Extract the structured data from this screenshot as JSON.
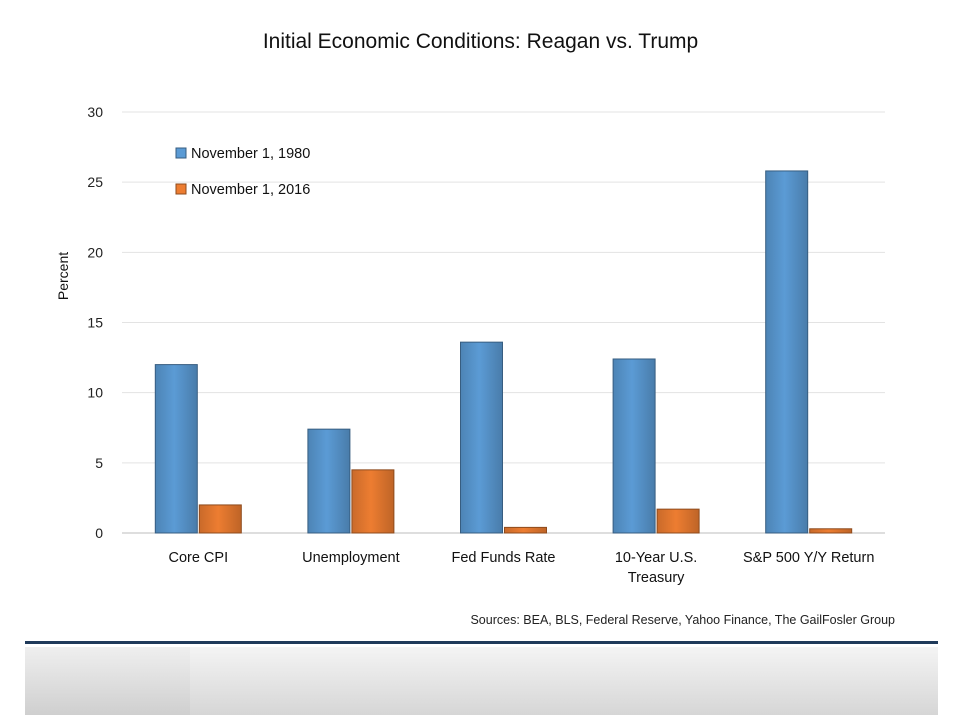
{
  "chart_data": {
    "type": "bar",
    "title": "Initial Economic Conditions: Reagan vs. Trump",
    "ylabel": "Percent",
    "xlabel": "",
    "ylim": [
      0,
      30
    ],
    "yticks": [
      "0",
      "5",
      "10",
      "15",
      "20",
      "25",
      "30"
    ],
    "grid": true,
    "legend_position": "top-left",
    "categories": [
      [
        "Core CPI"
      ],
      [
        "Unemployment"
      ],
      [
        "Fed Funds Rate"
      ],
      [
        "10-Year U.S.",
        "Treasury"
      ],
      [
        "S&P 500 Y/Y Return"
      ]
    ],
    "series": [
      {
        "name": "November 1, 1980",
        "color": "#5b9bd5",
        "values": [
          12.0,
          7.4,
          13.6,
          12.4,
          25.8
        ]
      },
      {
        "name": "November 1, 2016",
        "color": "#ed7d31",
        "values": [
          2.0,
          4.5,
          0.4,
          1.7,
          0.3
        ]
      }
    ],
    "source": "Sources: BEA, BLS, Federal Reserve, Yahoo Finance, The GailFosler Group"
  }
}
